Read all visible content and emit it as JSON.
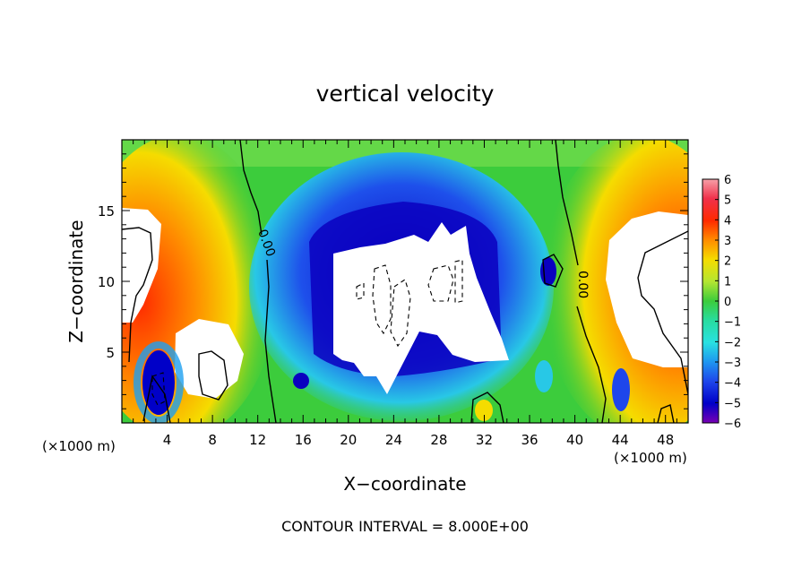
{
  "title": "vertical velocity",
  "footer": "CONTOUR INTERVAL = 8.000E+00",
  "chart_data": {
    "type": "heatmap",
    "title": "vertical velocity",
    "xlabel": "X−coordinate",
    "ylabel": "Z−coordinate",
    "x_unit_left": "(×1000 m)",
    "x_unit_right": "(×1000 m)",
    "xlim": [
      0,
      50
    ],
    "ylim": [
      0,
      20
    ],
    "x_ticks": [
      4,
      8,
      12,
      16,
      20,
      24,
      28,
      32,
      36,
      40,
      44,
      48
    ],
    "x_tick_labels": [
      "4",
      "8",
      "12",
      "16",
      "20",
      "24",
      "28",
      "32",
      "36",
      "40",
      "44",
      "48"
    ],
    "y_ticks": [
      5,
      10,
      15
    ],
    "y_tick_labels": [
      "5",
      "10",
      "15"
    ],
    "colorbar": {
      "min": -6,
      "max": 6,
      "ticks": [
        6,
        5,
        4,
        3,
        2,
        1,
        0,
        -1,
        -2,
        -3,
        -4,
        -5,
        -6
      ],
      "tick_labels": [
        "6",
        "5",
        "4",
        "3",
        "2",
        "1",
        "0",
        "−1",
        "−2",
        "−3",
        "−4",
        "−5",
        "−6"
      ]
    },
    "contour_labels": [
      "0.00",
      "0.00"
    ],
    "contour_interval": 8.0,
    "grid": false
  }
}
